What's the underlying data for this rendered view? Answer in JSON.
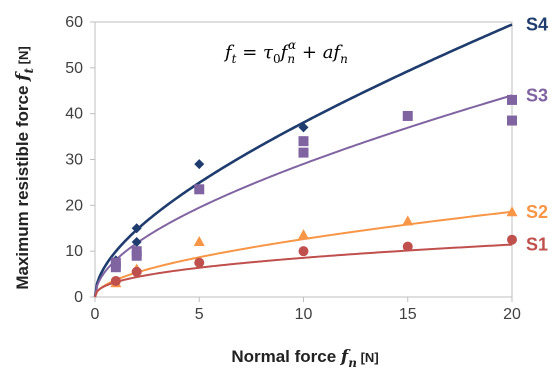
{
  "chart_data": {
    "type": "scatter",
    "xlabel": {
      "prefix": "Normal force ",
      "symbol": "f",
      "sub": "n",
      "unit": " [N]"
    },
    "ylabel": {
      "prefix": "Maximum resistible force ",
      "symbol": "f",
      "sub": "t",
      "unit": " [N]"
    },
    "xlim": [
      0,
      20
    ],
    "ylim": [
      0,
      60
    ],
    "xticks": [
      0,
      5,
      10,
      15,
      20
    ],
    "yticks": [
      0,
      10,
      20,
      30,
      40,
      50,
      60
    ],
    "grid": false,
    "annotation": {
      "lhs": "f",
      "lhs_sub": "t",
      "eq": " = ",
      "tau": "τ",
      "tau_sub": "0",
      "f": "f",
      "f_sub": "n",
      "exp": "α",
      "plus": " + ",
      "a": "a",
      "f2": "f",
      "f2_sub": "n"
    },
    "series": [
      {
        "name": "S4",
        "color": "#1f3c6e",
        "marker_color": "#1f3c6e",
        "marker": "diamond",
        "fit": {
          "tau0": 9.0,
          "alpha": 0.5,
          "a": 0.96
        },
        "x": [
          1,
          2,
          2,
          5,
          10
        ],
        "y": [
          8,
          12,
          15,
          29,
          37
        ]
      },
      {
        "name": "S3",
        "color": "#8064a2",
        "marker_color": "#8064a2",
        "marker": "square",
        "fit": {
          "tau0": 7.6,
          "alpha": 0.5,
          "a": 0.5
        },
        "x": [
          1,
          1,
          2,
          2,
          5,
          10,
          10,
          15,
          20,
          20
        ],
        "y": [
          6.5,
          7.5,
          9,
          10,
          23.5,
          31.5,
          34,
          39.5,
          38.5,
          43
        ]
      },
      {
        "name": "S2",
        "color": "#f79646",
        "marker_color": "#f79646",
        "marker": "triangle",
        "fit": {
          "tau0": 3.6,
          "alpha": 0.5,
          "a": 0.125
        },
        "x": [
          1,
          2,
          5,
          10,
          15,
          20
        ],
        "y": [
          3,
          6,
          12,
          13.5,
          16.5,
          18.5
        ]
      },
      {
        "name": "S1",
        "color": "#c0504d",
        "marker_color": "#c0504d",
        "marker": "circle",
        "fit": {
          "tau0": 3.25,
          "alpha": 0.42,
          "a": 0.0
        },
        "x": [
          1,
          2,
          5,
          10,
          15,
          20
        ],
        "y": [
          3.5,
          5.5,
          7.5,
          10,
          11,
          12.5
        ]
      }
    ]
  }
}
